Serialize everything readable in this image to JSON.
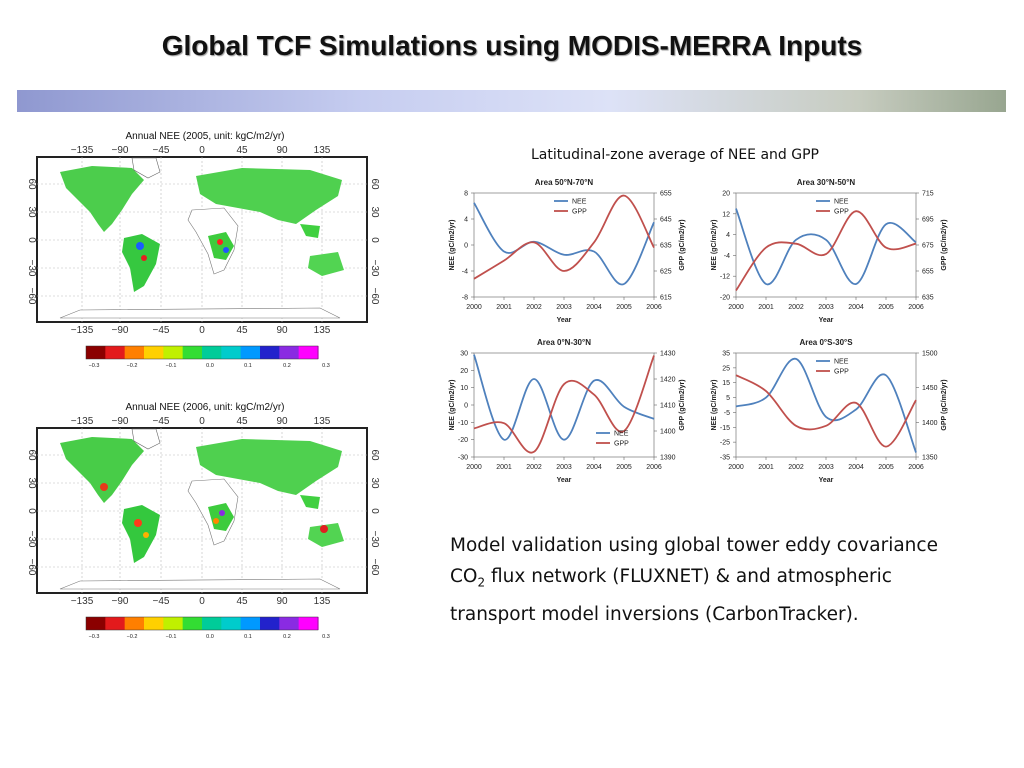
{
  "slide": {
    "title": "Global TCF Simulations using MODIS-MERRA Inputs",
    "lat_caption": "Latitudinal-zone average of NEE and GPP",
    "validation": {
      "pre": "Model validation using global tower eddy covariance CO",
      "sub": "2",
      "post": " flux network (FLUXNET) & and atmospheric transport model inversions (CarbonTracker)."
    }
  },
  "maps": [
    {
      "title": "Annual NEE (2005, unit: kgC/m2/yr)",
      "lon_ticks": [
        "−135",
        "−90",
        "−45",
        "0",
        "45",
        "90",
        "135"
      ],
      "lat_ticks": [
        "60",
        "30",
        "0",
        "−30",
        "−60"
      ],
      "colorbar_ticks": [
        "−0.3",
        "−0.2",
        "−0.1",
        "0.0",
        "0.1",
        "0.2",
        "0.3"
      ]
    },
    {
      "title": "Annual NEE (2006, unit: kgC/m2/yr)",
      "lon_ticks": [
        "−135",
        "−90",
        "−45",
        "0",
        "45",
        "90",
        "135"
      ],
      "lat_ticks": [
        "60",
        "30",
        "0",
        "−30",
        "−60"
      ],
      "colorbar_ticks": [
        "−0.3",
        "−0.2",
        "−0.1",
        "0.0",
        "0.1",
        "0.2",
        "0.3"
      ]
    }
  ],
  "colors": {
    "nee": "#4f81bd",
    "gpp": "#c0504d",
    "colorbar": [
      "#8b0000",
      "#e31a1c",
      "#ff7f00",
      "#ffd000",
      "#c0f000",
      "#33dd33",
      "#00cc99",
      "#00cccc",
      "#0099ff",
      "#2222cc",
      "#8a2be2",
      "#ff00ff"
    ]
  },
  "chart_data": [
    {
      "type": "line",
      "title": "Area 50°N-70°N",
      "xlabel": "Year",
      "ylabel": "NEE (gC/m2/yr)",
      "y2label": "GPP (gC/m2/yr)",
      "x": [
        2000,
        2001,
        2002,
        2003,
        2004,
        2005,
        2006
      ],
      "ylim": [
        -8,
        8
      ],
      "yticks": [
        -8,
        -4,
        0,
        4,
        8
      ],
      "y2lim": [
        615,
        655
      ],
      "y2ticks": [
        615,
        625,
        635,
        645,
        655
      ],
      "legend": "top-center",
      "series": [
        {
          "name": "NEE",
          "axis": "left",
          "values": [
            6.5,
            -1.0,
            0.5,
            -1.5,
            -1.0,
            -6.0,
            3.5
          ]
        },
        {
          "name": "GPP",
          "axis": "right",
          "values": [
            622,
            629,
            636,
            625,
            636,
            654,
            634
          ]
        }
      ]
    },
    {
      "type": "line",
      "title": "Area 30°N-50°N",
      "xlabel": "Year",
      "ylabel": "NEE (gC/m2/yr)",
      "y2label": "GPP (gC/m2/yr)",
      "x": [
        2000,
        2001,
        2002,
        2003,
        2004,
        2005,
        2006
      ],
      "ylim": [
        -20,
        20
      ],
      "yticks": [
        -20,
        -12,
        -4,
        4,
        12,
        20
      ],
      "y2lim": [
        635,
        715
      ],
      "y2ticks": [
        635,
        655,
        675,
        695,
        715
      ],
      "legend": "top-center",
      "series": [
        {
          "name": "NEE",
          "axis": "left",
          "values": [
            14,
            -15,
            2,
            2,
            -15,
            8,
            1
          ]
        },
        {
          "name": "GPP",
          "axis": "right",
          "values": [
            640,
            673,
            676,
            668,
            701,
            673,
            676
          ]
        }
      ]
    },
    {
      "type": "line",
      "title": "Area 0°N-30°N",
      "xlabel": "Year",
      "ylabel": "NEE (gC/m2/yr)",
      "y2label": "GPP (gC/m2/yr)",
      "x": [
        2000,
        2001,
        2002,
        2003,
        2004,
        2005,
        2006
      ],
      "ylim": [
        -30,
        30
      ],
      "yticks": [
        -30,
        -20,
        -10,
        0,
        10,
        20,
        30
      ],
      "y2lim": [
        1390,
        1430
      ],
      "y2ticks": [
        1390,
        1400,
        1410,
        1420,
        1430
      ],
      "legend": "bottom-right",
      "series": [
        {
          "name": "NEE",
          "axis": "left",
          "values": [
            29,
            -20,
            15,
            -20,
            14,
            -1,
            -8
          ]
        },
        {
          "name": "GPP",
          "axis": "right",
          "values": [
            1401,
            1403,
            1392,
            1418,
            1414,
            1400,
            1429
          ]
        }
      ]
    },
    {
      "type": "line",
      "title": "Area 0°S-30°S",
      "xlabel": "Year",
      "ylabel": "NEE (gC/m2/yr)",
      "y2label": "GPP (gC/m2/yr)",
      "x": [
        2000,
        2001,
        2002,
        2003,
        2004,
        2005,
        2006
      ],
      "ylim": [
        -35,
        35
      ],
      "yticks": [
        -35,
        -25,
        -15,
        -5,
        5,
        15,
        25,
        35
      ],
      "y2lim": [
        1350,
        1500
      ],
      "y2ticks": [
        1350,
        1400,
        1450,
        1500
      ],
      "legend": "top-center",
      "series": [
        {
          "name": "NEE",
          "axis": "left",
          "values": [
            -1,
            5,
            31,
            -8,
            -3,
            20,
            -32
          ]
        },
        {
          "name": "GPP",
          "axis": "right",
          "values": [
            1468,
            1445,
            1395,
            1395,
            1428,
            1365,
            1432
          ]
        }
      ]
    }
  ]
}
